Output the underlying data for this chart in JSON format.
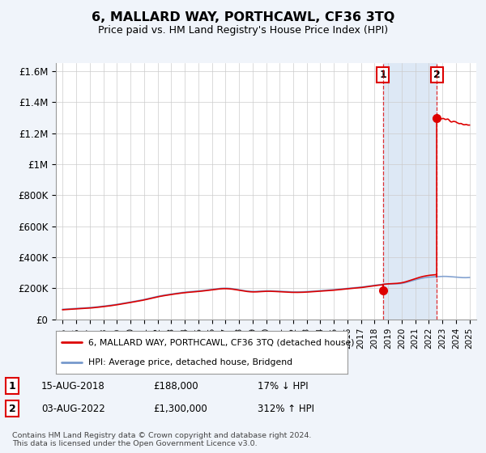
{
  "title": "6, MALLARD WAY, PORTHCAWL, CF36 3TQ",
  "subtitle": "Price paid vs. HM Land Registry's House Price Index (HPI)",
  "ylim": [
    0,
    1650000
  ],
  "xlim": [
    1994.5,
    2025.5
  ],
  "yticks": [
    0,
    200000,
    400000,
    600000,
    800000,
    1000000,
    1200000,
    1400000,
    1600000
  ],
  "ytick_labels": [
    "£0",
    "£200K",
    "£400K",
    "£600K",
    "£800K",
    "£1M",
    "£1.2M",
    "£1.4M",
    "£1.6M"
  ],
  "xticks": [
    1995,
    1996,
    1997,
    1998,
    1999,
    2000,
    2001,
    2002,
    2003,
    2004,
    2005,
    2006,
    2007,
    2008,
    2009,
    2010,
    2011,
    2012,
    2013,
    2014,
    2015,
    2016,
    2017,
    2018,
    2019,
    2020,
    2021,
    2022,
    2023,
    2024,
    2025
  ],
  "hpi_color": "#7799cc",
  "price_color": "#dd0000",
  "shade_color": "#dde8f5",
  "transaction1_x": 2018.62,
  "transaction1_y": 188000,
  "transaction2_x": 2022.58,
  "transaction2_y": 1300000,
  "legend_label1": "6, MALLARD WAY, PORTHCAWL, CF36 3TQ (detached house)",
  "legend_label2": "HPI: Average price, detached house, Bridgend",
  "note1_label": "1",
  "note1_date": "15-AUG-2018",
  "note1_price": "£188,000",
  "note1_hpi": "17% ↓ HPI",
  "note2_label": "2",
  "note2_date": "03-AUG-2022",
  "note2_price": "£1,300,000",
  "note2_hpi": "312% ↑ HPI",
  "footer": "Contains HM Land Registry data © Crown copyright and database right 2024.\nThis data is licensed under the Open Government Licence v3.0.",
  "background_color": "#f0f4fa",
  "plot_bg_color": "#ffffff",
  "grid_color": "#cccccc"
}
